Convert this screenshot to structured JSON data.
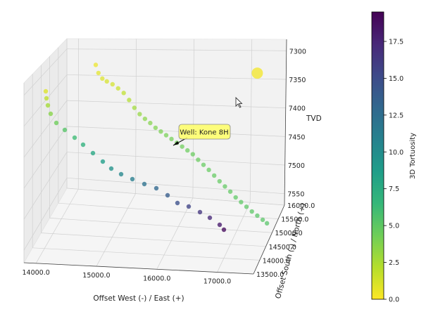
{
  "chart_data": {
    "type": "scatter",
    "projection": "3d",
    "grid": true,
    "xlabel": "Offset West (-) / East (+)",
    "ylabel": "Offset South (-) / North (+)",
    "zlabel": "TVD",
    "xticks": [
      "14000.0",
      "15000.0",
      "16000.0",
      "17000.0"
    ],
    "yticks": [
      "13500.0",
      "14000.0",
      "14500.0",
      "15000.0",
      "15500.0",
      "16000.0"
    ],
    "zticks": [
      "7300",
      "7350",
      "7400",
      "7450",
      "7500",
      "7550"
    ],
    "xlim": [
      13800,
      17600
    ],
    "ylim": [
      13500,
      16000
    ],
    "zlim": [
      7280,
      7570
    ],
    "zinverted": true,
    "annotation": {
      "text": "Well: Kone 8H",
      "x": 16100,
      "y": 15550,
      "z": 7450
    },
    "colorbar": {
      "label": "3D Tortuosity",
      "ticks": [
        "0.0",
        "2.5",
        "5.0",
        "7.5",
        "10.0",
        "12.5",
        "15.0",
        "17.5"
      ],
      "tick_values": [
        0,
        2.5,
        5.0,
        7.5,
        10.0,
        12.5,
        15.0,
        17.5
      ],
      "min": 0,
      "max": 19.5,
      "colormap": "viridis_r"
    },
    "series": [
      {
        "marker": "circle",
        "size": "small",
        "points": [
          {
            "x": 14300,
            "y": 16000,
            "z": 7330,
            "c": 0.5
          },
          {
            "x": 14350,
            "y": 15990,
            "z": 7345,
            "c": 0.8
          },
          {
            "x": 14420,
            "y": 15980,
            "z": 7355,
            "c": 1.0
          },
          {
            "x": 14500,
            "y": 15975,
            "z": 7360,
            "c": 1.2
          },
          {
            "x": 14600,
            "y": 15970,
            "z": 7365,
            "c": 1.3
          },
          {
            "x": 14700,
            "y": 15960,
            "z": 7372,
            "c": 1.6
          },
          {
            "x": 14800,
            "y": 15950,
            "z": 7380,
            "c": 1.9
          },
          {
            "x": 14900,
            "y": 15930,
            "z": 7392,
            "c": 2.3
          },
          {
            "x": 15000,
            "y": 15900,
            "z": 7405,
            "c": 2.8
          },
          {
            "x": 15100,
            "y": 15870,
            "z": 7415,
            "c": 3.2
          },
          {
            "x": 15200,
            "y": 15840,
            "z": 7422,
            "c": 3.5
          },
          {
            "x": 15300,
            "y": 15810,
            "z": 7428,
            "c": 3.7
          },
          {
            "x": 15400,
            "y": 15780,
            "z": 7435,
            "c": 3.8
          },
          {
            "x": 15500,
            "y": 15750,
            "z": 7440,
            "c": 4.0
          },
          {
            "x": 15600,
            "y": 15720,
            "z": 7445,
            "c": 4.1
          },
          {
            "x": 15700,
            "y": 15690,
            "z": 7450,
            "c": 4.2
          },
          {
            "x": 15800,
            "y": 15660,
            "z": 7455,
            "c": 4.3
          },
          {
            "x": 15900,
            "y": 15630,
            "z": 7460,
            "c": 4.4
          },
          {
            "x": 16000,
            "y": 15600,
            "z": 7465,
            "c": 4.5
          },
          {
            "x": 16100,
            "y": 15570,
            "z": 7470,
            "c": 4.6
          },
          {
            "x": 16200,
            "y": 15540,
            "z": 7478,
            "c": 4.6
          },
          {
            "x": 16300,
            "y": 15510,
            "z": 7485,
            "c": 4.7
          },
          {
            "x": 16400,
            "y": 15480,
            "z": 7492,
            "c": 4.7
          },
          {
            "x": 16500,
            "y": 15450,
            "z": 7500,
            "c": 4.8
          },
          {
            "x": 16600,
            "y": 15420,
            "z": 7508,
            "c": 4.8
          },
          {
            "x": 16700,
            "y": 15390,
            "z": 7515,
            "c": 4.9
          },
          {
            "x": 16800,
            "y": 15360,
            "z": 7522,
            "c": 4.9
          },
          {
            "x": 16900,
            "y": 15330,
            "z": 7530,
            "c": 5.0
          },
          {
            "x": 17000,
            "y": 15300,
            "z": 7536,
            "c": 5.0
          },
          {
            "x": 17100,
            "y": 15270,
            "z": 7542,
            "c": 5.1
          },
          {
            "x": 17200,
            "y": 15240,
            "z": 7548,
            "c": 5.1
          },
          {
            "x": 17300,
            "y": 15210,
            "z": 7553,
            "c": 5.2
          },
          {
            "x": 17400,
            "y": 15180,
            "z": 7558,
            "c": 5.2
          },
          {
            "x": 17480,
            "y": 15150,
            "z": 7562,
            "c": 5.3
          }
        ]
      },
      {
        "marker": "circle",
        "size": "large",
        "points": [
          {
            "x": 17100,
            "y": 16000,
            "z": 7340,
            "c": 0.3
          }
        ]
      }
    ]
  }
}
